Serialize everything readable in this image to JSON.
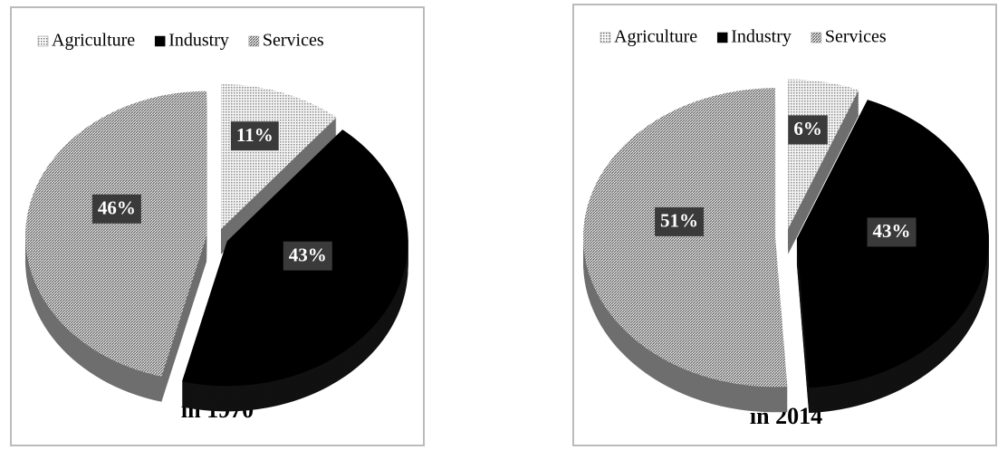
{
  "chart_data": [
    {
      "type": "pie",
      "title": "in 1970",
      "categories": [
        "Agriculture",
        "Industry",
        "Services"
      ],
      "values": [
        11,
        43,
        46
      ],
      "value_labels": [
        "11%",
        "43%",
        "46%"
      ],
      "colors": [
        "#d4d4d4",
        "#000000",
        "#9a9a9a"
      ],
      "legend": "top"
    },
    {
      "type": "pie",
      "title": "in 2014",
      "categories": [
        "Agriculture",
        "Industry",
        "Services"
      ],
      "values": [
        6,
        43,
        51
      ],
      "value_labels": [
        "6%",
        "43%",
        "51%"
      ],
      "colors": [
        "#d4d4d4",
        "#000000",
        "#9a9a9a"
      ],
      "legend": "top"
    }
  ]
}
